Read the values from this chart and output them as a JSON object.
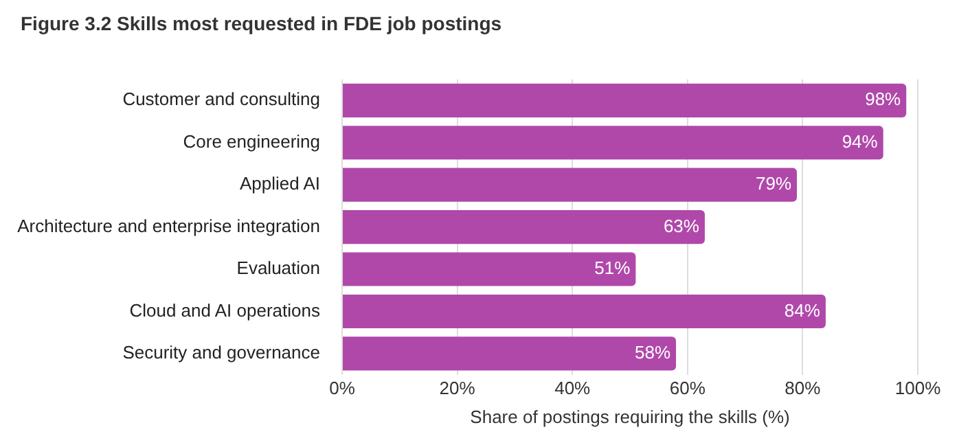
{
  "chart_data": {
    "type": "bar",
    "orientation": "horizontal",
    "title": "Figure 3.2 Skills most requested in FDE job postings",
    "xlabel": "Share of postings requiring the skills (%)",
    "categories": [
      "Customer and consulting",
      "Core engineering",
      "Applied AI",
      "Architecture and enterprise integration",
      "Evaluation",
      "Cloud and AI operations",
      "Security and governance"
    ],
    "values": [
      98,
      94,
      79,
      63,
      51,
      84,
      58
    ],
    "value_labels": [
      "98%",
      "94%",
      "79%",
      "63%",
      "51%",
      "84%",
      "58%"
    ],
    "color": "#b048aa",
    "xlim": [
      0,
      100
    ],
    "xticks": [
      {
        "value": 0,
        "label": "0%"
      },
      {
        "value": 20,
        "label": "20%"
      },
      {
        "value": 40,
        "label": "40%"
      },
      {
        "value": 60,
        "label": "60%"
      },
      {
        "value": 80,
        "label": "80%"
      },
      {
        "value": 100,
        "label": "100%"
      }
    ],
    "grid": "x",
    "legend": false
  }
}
